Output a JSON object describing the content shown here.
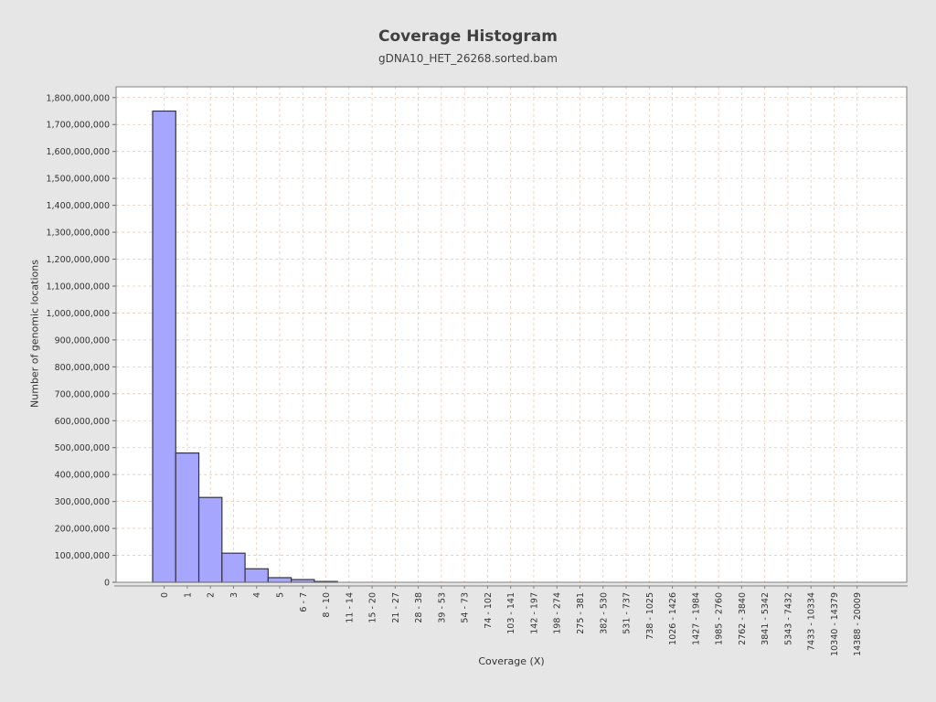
{
  "chart_data": {
    "type": "bar",
    "title": "Coverage Histogram",
    "subtitle": "gDNA10_HET_26268.sorted.bam",
    "xlabel": "Coverage (X)",
    "ylabel": "Number of genomic locations",
    "ylim": [
      0,
      1840000000
    ],
    "yticks": [
      0,
      100000000,
      200000000,
      300000000,
      400000000,
      500000000,
      600000000,
      700000000,
      800000000,
      900000000,
      1000000000,
      1100000000,
      1200000000,
      1300000000,
      1400000000,
      1500000000,
      1600000000,
      1700000000,
      1800000000
    ],
    "grid": true,
    "categories": [
      "0",
      "1",
      "2",
      "3",
      "4",
      "5",
      "6 - 7",
      "8 - 10",
      "11 - 14",
      "15 - 20",
      "21 - 27",
      "28 - 38",
      "39 - 53",
      "54 - 73",
      "74 - 102",
      "103 - 141",
      "142 - 197",
      "198 - 274",
      "275 - 381",
      "382 - 530",
      "531 - 737",
      "738 - 1025",
      "1026 - 1426",
      "1427 - 1984",
      "1985 - 2760",
      "2762 - 3840",
      "3841 - 5342",
      "5343 - 7432",
      "7433 - 10334",
      "10340 - 14379",
      "14388 - 20009"
    ],
    "values": [
      1750000000,
      480000000,
      315000000,
      108000000,
      50000000,
      17000000,
      10000000,
      3000000,
      0,
      0,
      0,
      0,
      0,
      0,
      0,
      0,
      0,
      0,
      0,
      0,
      0,
      0,
      0,
      0,
      0,
      0,
      0,
      0,
      0,
      0,
      0
    ],
    "colors": {
      "bar_fill": "#a6a6ff",
      "bar_stroke": "#333344",
      "grid": "#f0c8a8",
      "plot_bg": "#ffffff",
      "page_bg": "#e6e6e6"
    }
  }
}
